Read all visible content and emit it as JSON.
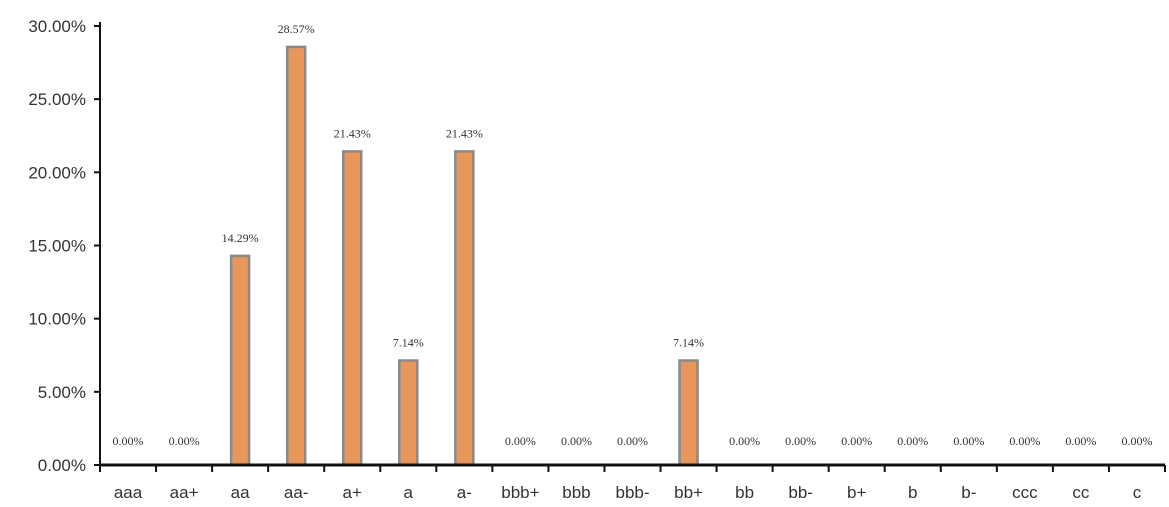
{
  "chart_data": {
    "type": "bar",
    "title": "",
    "xlabel": "",
    "ylabel": "",
    "ylim": [
      0,
      30
    ],
    "yticks": [
      "0.00%",
      "5.00%",
      "10.00%",
      "15.00%",
      "20.00%",
      "25.00%",
      "30.00%"
    ],
    "categories": [
      "aaa",
      "aa+",
      "aa",
      "aa-",
      "a+",
      "a",
      "a-",
      "bbb+",
      "bbb",
      "bbb-",
      "bb+",
      "bb",
      "bb-",
      "b+",
      "b",
      "b-",
      "ccc",
      "cc",
      "c"
    ],
    "values": [
      0,
      0,
      14.29,
      28.57,
      21.43,
      7.14,
      21.43,
      0,
      0,
      0,
      7.14,
      0,
      0,
      0,
      0,
      0,
      0,
      0,
      0
    ],
    "data_labels": [
      "0.00%",
      "0.00%",
      "14.29%",
      "28.57%",
      "21.43%",
      "7.14%",
      "21.43%",
      "0.00%",
      "0.00%",
      "0.00%",
      "7.14%",
      "0.00%",
      "0.00%",
      "0.00%",
      "0.00%",
      "0.00%",
      "0.00%",
      "0.00%",
      "0.00%"
    ],
    "grid": false,
    "legend": "none",
    "colors": {
      "bar_fill": "#e8965a",
      "bar_stroke": "#8a8a8a",
      "axis": "#111111"
    }
  }
}
